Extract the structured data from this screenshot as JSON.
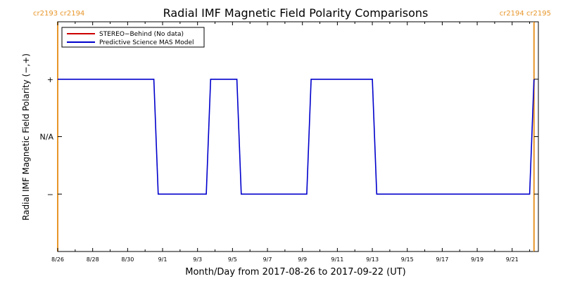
{
  "chart_data": {
    "type": "line",
    "title": "Radial IMF Magnetic Field Polarity Comparisons",
    "xlabel": "Month/Day from 2017-08-26 to 2017-09-22 (UT)",
    "ylabel": "Radial IMF Magnetic Field Polarity (−,+)",
    "x_start_date": "2017-08-26",
    "x_ticks": [
      "8/26",
      "8/28",
      "8/30",
      "9/1",
      "9/3",
      "9/5",
      "9/7",
      "9/9",
      "9/11",
      "9/13",
      "9/15",
      "9/17",
      "9/19",
      "9/21"
    ],
    "y_ticks": [
      {
        "value": 1,
        "label": "+"
      },
      {
        "value": 0,
        "label": "N/A"
      },
      {
        "value": -1,
        "label": "−"
      }
    ],
    "ylim": [
      -2,
      2
    ],
    "xlim": [
      "2017-08-26",
      "2017-09-22T12:00"
    ],
    "legend_position": "top-left",
    "series": [
      {
        "name": "STEREO−Behind (No data)",
        "color": "#cc0000",
        "points": []
      },
      {
        "name": "Predictive Science MAS Model",
        "color": "#0000cc",
        "points": [
          [
            "2017-08-26T00:00",
            1
          ],
          [
            "2017-08-31T12:00",
            1
          ],
          [
            "2017-08-31T18:00",
            -1
          ],
          [
            "2017-09-03T12:00",
            -1
          ],
          [
            "2017-09-03T18:00",
            1
          ],
          [
            "2017-09-05T06:00",
            1
          ],
          [
            "2017-09-05T12:00",
            -1
          ],
          [
            "2017-09-09T06:00",
            -1
          ],
          [
            "2017-09-09T12:00",
            1
          ],
          [
            "2017-09-13T00:00",
            1
          ],
          [
            "2017-09-13T06:00",
            -1
          ],
          [
            "2017-09-22T00:00",
            -1
          ],
          [
            "2017-09-22T06:00",
            1
          ]
        ]
      }
    ],
    "carrington_markers": [
      {
        "date": "2017-08-26",
        "label": "cr2193 cr2194",
        "color": "#e8962a"
      },
      {
        "date": "2017-09-22T06:00",
        "label": "cr2194 cr2195",
        "color": "#e8962a"
      }
    ]
  }
}
